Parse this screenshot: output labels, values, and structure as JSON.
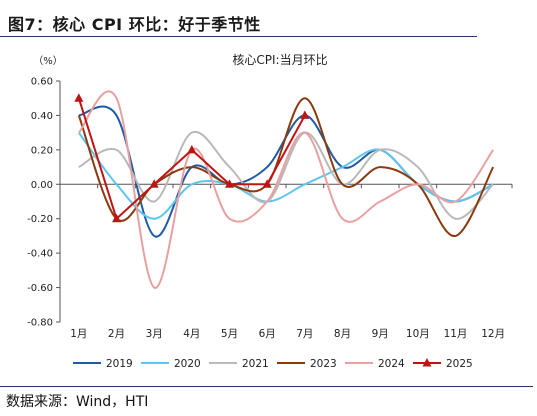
{
  "figure": {
    "title": "图7：核心 CPI 环比：好于季节性",
    "source": "数据来源：Wind，HTI"
  },
  "chart_data": {
    "type": "line",
    "title": "核心CPI:当月环比",
    "ylabel": "（%）",
    "xlabel": "",
    "categories": [
      "1月",
      "2月",
      "3月",
      "4月",
      "5月",
      "6月",
      "7月",
      "8月",
      "9月",
      "10月",
      "11月",
      "12月"
    ],
    "ylim": [
      -0.8,
      0.6
    ],
    "yticks": [
      "0.60",
      "0.40",
      "0.20",
      "0.00",
      "-0.20",
      "-0.40",
      "-0.60",
      "-0.80"
    ],
    "ytick_values": [
      0.6,
      0.4,
      0.2,
      0.0,
      -0.2,
      -0.4,
      -0.6,
      -0.8
    ],
    "grid": false,
    "legend_position": "bottom",
    "series": [
      {
        "name": "2019",
        "color": "#1f5aa6",
        "smooth": true,
        "values": [
          0.4,
          0.4,
          -0.3,
          0.1,
          0.0,
          0.1,
          0.4,
          0.1,
          0.2,
          0.0,
          -0.1,
          0.0
        ]
      },
      {
        "name": "2020",
        "color": "#5ec6ee",
        "smooth": true,
        "values": [
          0.3,
          0.0,
          -0.2,
          0.0,
          0.0,
          -0.1,
          0.0,
          0.1,
          0.2,
          0.0,
          -0.1,
          0.0
        ]
      },
      {
        "name": "2021",
        "color": "#b9b9b9",
        "smooth": true,
        "values": [
          0.1,
          0.2,
          -0.1,
          0.3,
          0.1,
          -0.1,
          0.3,
          0.0,
          0.2,
          0.1,
          -0.2,
          0.0
        ]
      },
      {
        "name": "2023",
        "color": "#8b3a0f",
        "smooth": true,
        "values": [
          0.4,
          -0.2,
          0.0,
          0.1,
          0.0,
          0.0,
          0.5,
          0.0,
          0.1,
          0.0,
          -0.3,
          0.1
        ]
      },
      {
        "name": "2024",
        "color": "#e8a0a0",
        "smooth": true,
        "values": [
          0.3,
          0.5,
          -0.6,
          0.2,
          -0.2,
          -0.1,
          0.3,
          -0.2,
          -0.1,
          0.0,
          -0.1,
          0.2
        ]
      },
      {
        "name": "2025",
        "color": "#c01414",
        "smooth": false,
        "marker": "triangle",
        "values": [
          0.5,
          -0.2,
          0.0,
          0.2,
          0.0,
          0.0,
          0.4,
          null,
          null,
          null,
          null,
          null
        ]
      }
    ]
  }
}
